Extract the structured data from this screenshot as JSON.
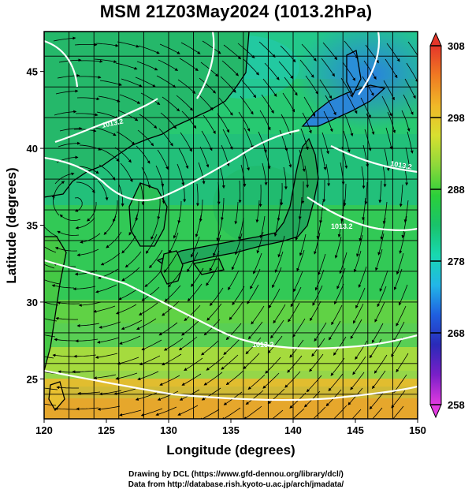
{
  "title": "MSM 21Z03May2024 (1013.2hPa)",
  "x_axis": {
    "label": "Longitude (degrees)",
    "ticks": [
      120,
      125,
      130,
      135,
      140,
      145,
      150
    ],
    "range": [
      120,
      150
    ]
  },
  "y_axis": {
    "label": "Latitude  (degrees)",
    "ticks": [
      25,
      30,
      35,
      40,
      45
    ],
    "range": [
      22.4,
      47.6
    ]
  },
  "colorbar": {
    "ticks": [
      258,
      268,
      278,
      288,
      298,
      308
    ],
    "range": [
      258,
      308
    ],
    "colors": [
      "#e23be0",
      "#7a1fc8",
      "#2a2ab8",
      "#1f5fe0",
      "#22b6e8",
      "#18d8b0",
      "#19c36a",
      "#2bcf3a",
      "#8ed83a",
      "#d8e030",
      "#f0b828",
      "#f07a22",
      "#e5362a"
    ]
  },
  "credits": {
    "line1": "Drawing by DCL (https://www.gfd-dennou.org/library/dcl/)",
    "line2": "Data from http://database.rish.kyoto-u.ac.jp/arch/jmadata/"
  },
  "contour_labels": [
    "1013.2"
  ]
}
